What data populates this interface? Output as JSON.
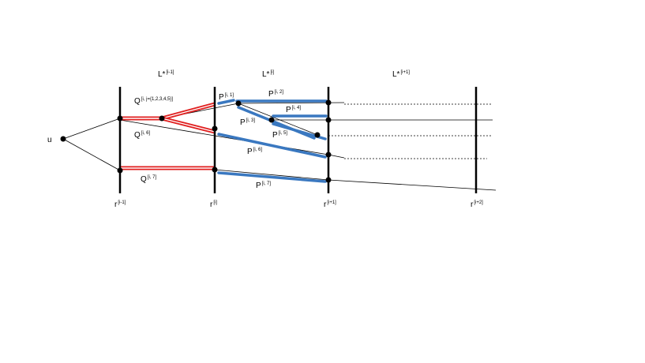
{
  "layers": [
    {
      "base": "L*",
      "sup": "[i-1]"
    },
    {
      "base": "L*",
      "sup": "[i]"
    },
    {
      "base": "L*",
      "sup": "[i+1]"
    }
  ],
  "source": "u",
  "r_labels": [
    {
      "base": "r",
      "sup": "[i-1]"
    },
    {
      "base": "r",
      "sup": "[i]"
    },
    {
      "base": "r",
      "sup": "[i+1]"
    },
    {
      "base": "r",
      "sup": "[i+2]"
    }
  ],
  "q_paths": [
    {
      "base": "Q",
      "sup": "[i, j={1,2,3,4,5}]"
    },
    {
      "base": "Q",
      "sup": "[i, 6]"
    },
    {
      "base": "Q",
      "sup": "[i, 7]"
    }
  ],
  "p_paths": [
    {
      "base": "P",
      "sup": "[i, 1]"
    },
    {
      "base": "P",
      "sup": "[i, 2]"
    },
    {
      "base": "P",
      "sup": "[i, 3]"
    },
    {
      "base": "P",
      "sup": "[i, 4]"
    },
    {
      "base": "P",
      "sup": "[i, 5]"
    },
    {
      "base": "P",
      "sup": "[i, 6]"
    },
    {
      "base": "P",
      "sup": "[i, 7]"
    }
  ]
}
